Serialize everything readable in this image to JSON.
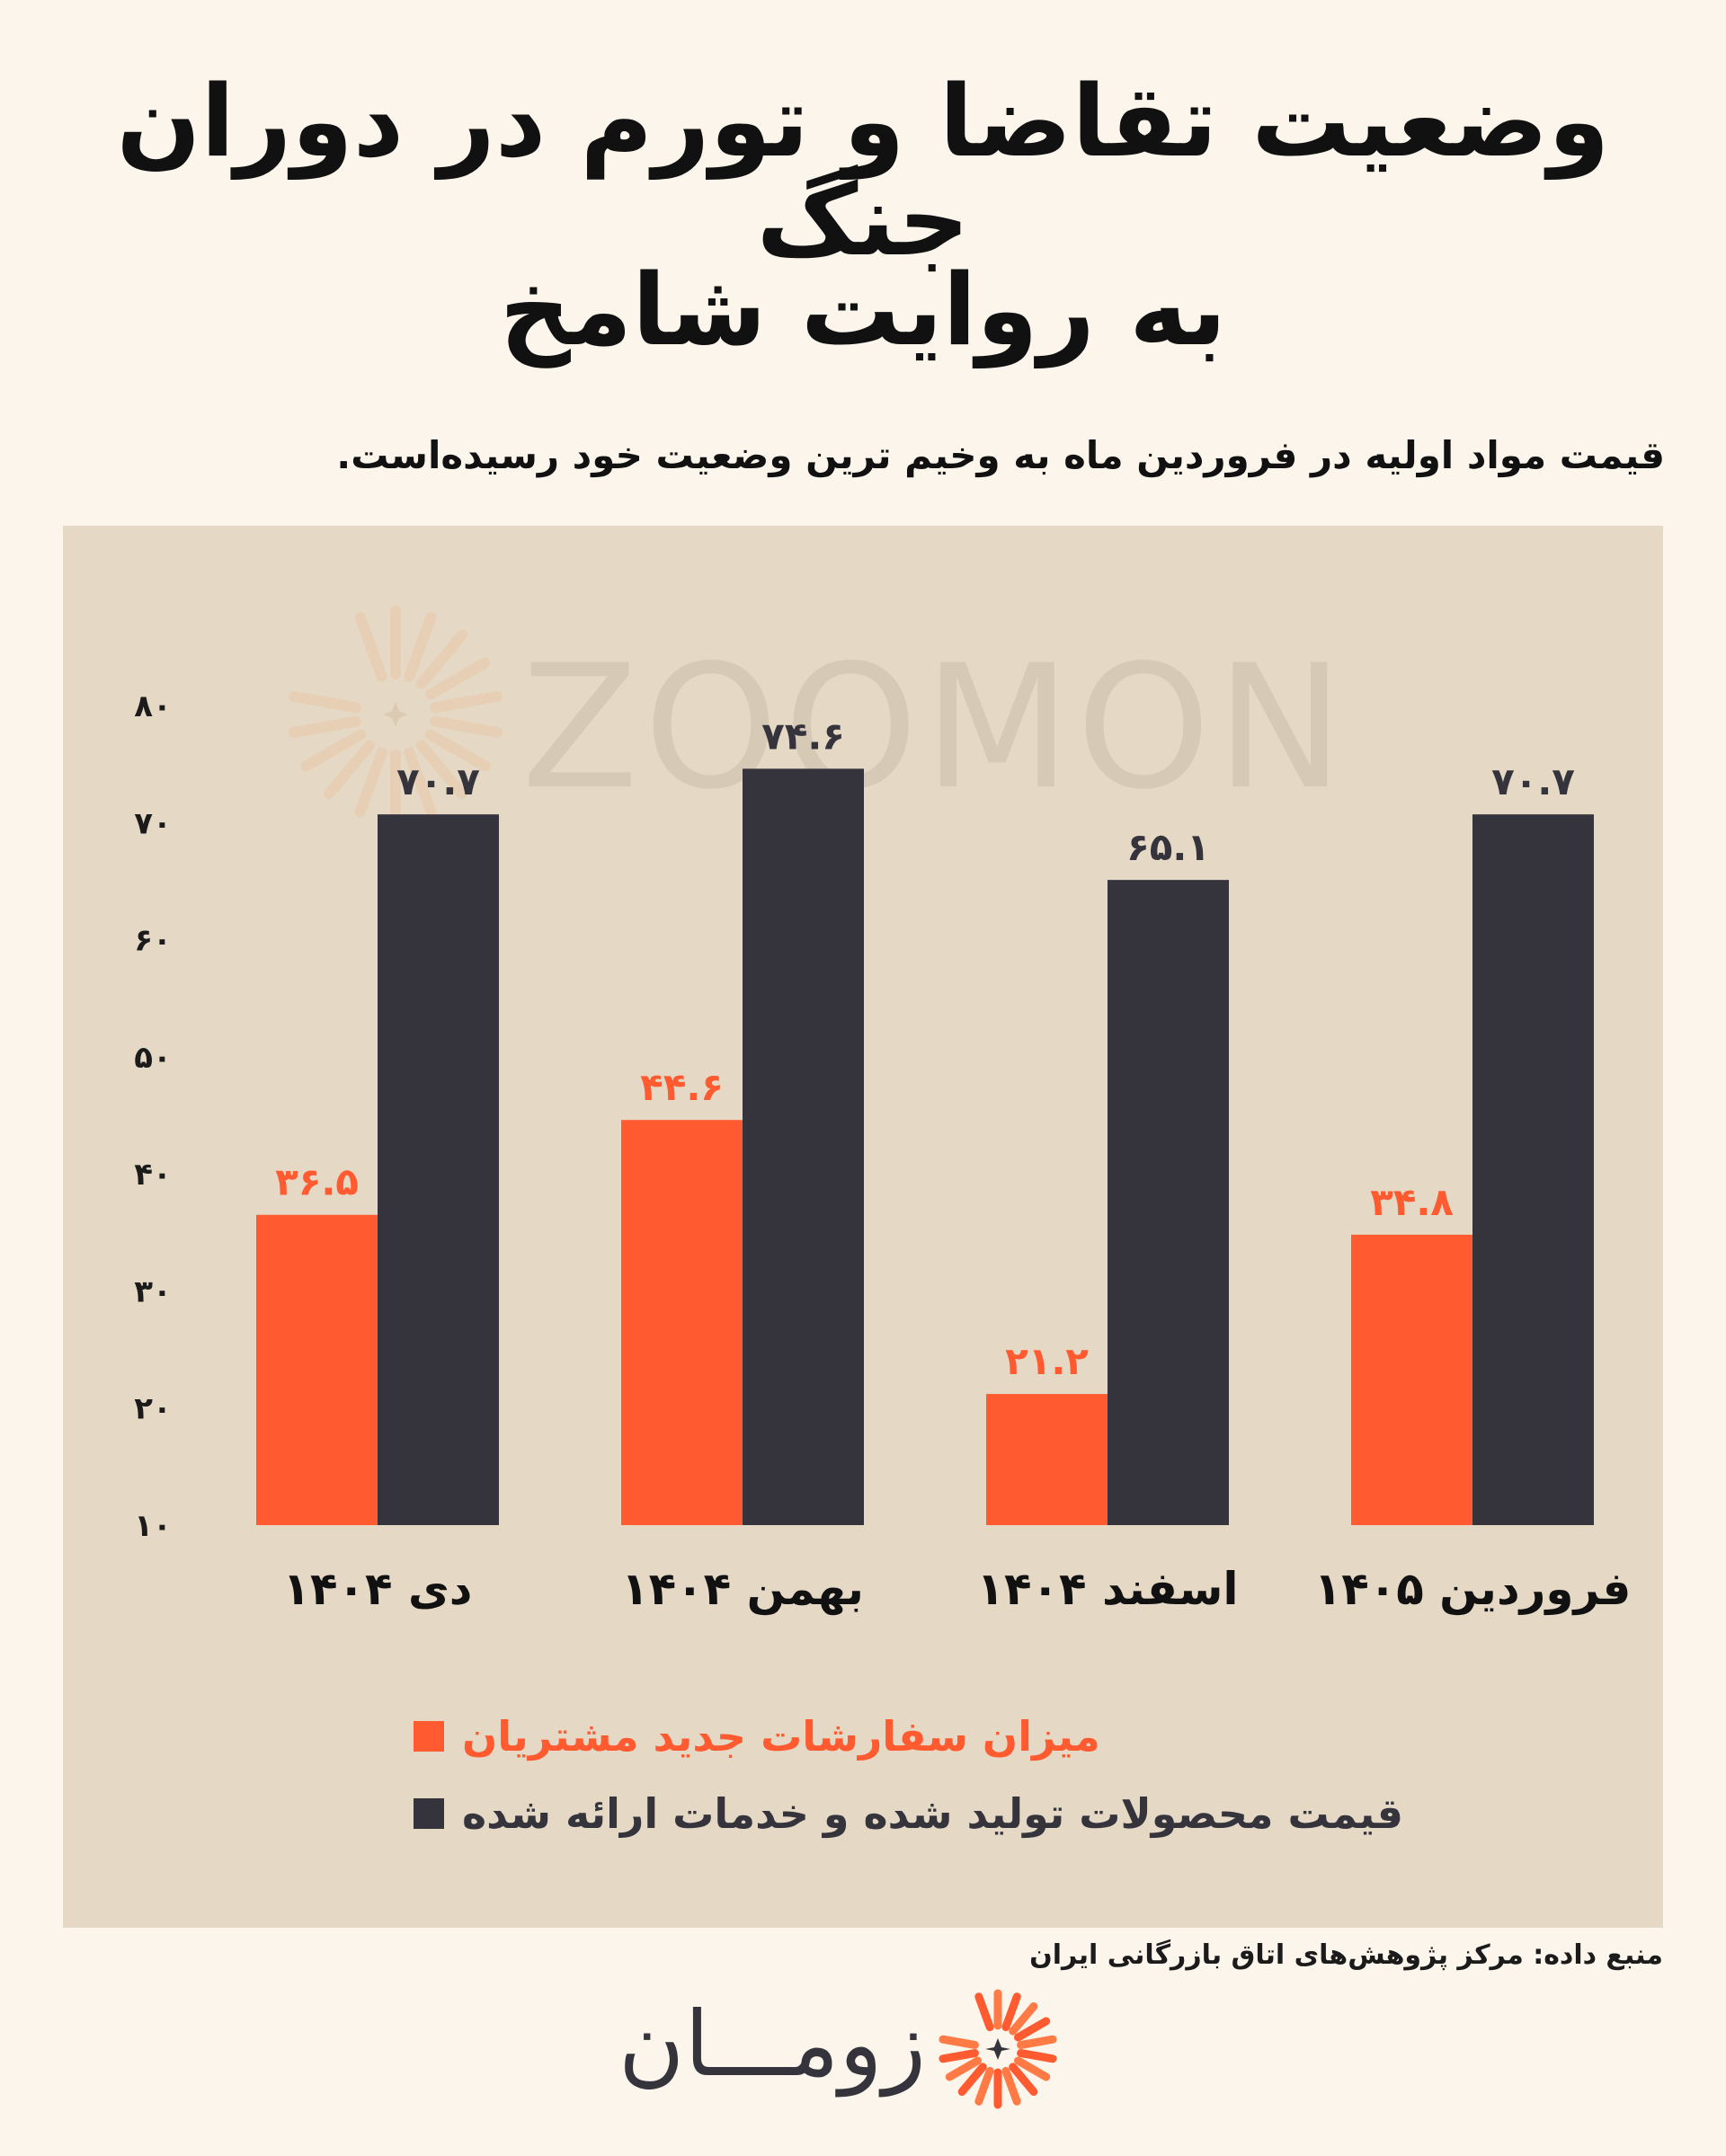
{
  "header": {
    "title_line1": "وضعیت تقاضا و تورم در دوران جنگ",
    "title_line2": "به روایت شامخ",
    "subtitle": "قیمت مواد اولیه در فروردین ماه به وخیم ترین وضعیت خود رسیده‌است."
  },
  "watermark": "ZOOMON",
  "chart_data": {
    "type": "bar",
    "categories": [
      "دی ۱۴۰۴",
      "بهمن ۱۴۰۴",
      "اسفند ۱۴۰۴",
      "فروردین ۱۴۰۵"
    ],
    "series": [
      {
        "name": "میزان سفارشات جدید مشتریان",
        "color": "#ff5a30",
        "values": [
          36.5,
          44.6,
          21.2,
          34.8
        ],
        "labels": [
          "۳۶.۵",
          "۴۴.۶",
          "۲۱.۲",
          "۳۴.۸"
        ]
      },
      {
        "name": "قیمت محصولات تولید شده و خدمات ارائه شده",
        "color": "#35343d",
        "values": [
          70.7,
          74.6,
          65.1,
          70.7
        ],
        "labels": [
          "۷۰.۷",
          "۷۴.۶",
          "۶۵.۱",
          "۷۰.۷"
        ]
      }
    ],
    "ylim": [
      10,
      80
    ],
    "yticks": [
      10,
      20,
      30,
      40,
      50,
      60,
      70,
      80
    ],
    "ytick_labels": [
      "۱۰",
      "۲۰",
      "۳۰",
      "۴۰",
      "۵۰",
      "۶۰",
      "۷۰",
      "۸۰"
    ],
    "grid": false,
    "legend_position": "bottom"
  },
  "footer": {
    "source": "منبع داده: مرکز پژوهش‌های اتاق بازرگانی ایران",
    "logo_text": "زومـــان"
  }
}
